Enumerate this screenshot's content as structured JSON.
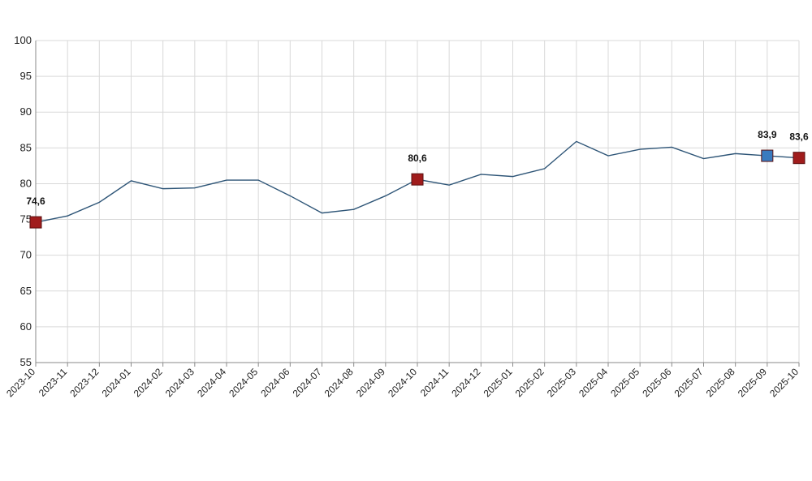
{
  "chart_data": {
    "type": "line",
    "title": "",
    "xlabel": "",
    "ylabel": "",
    "ylim": [
      55,
      100
    ],
    "y_ticks": [
      55,
      60,
      65,
      70,
      75,
      80,
      85,
      90,
      95,
      100
    ],
    "y_tick_labels": [
      "55",
      "60",
      "65",
      "70",
      "75",
      "80",
      "85",
      "90",
      "95",
      "100"
    ],
    "grid": true,
    "legend": "none",
    "categories": [
      "2023-10",
      "2023-11",
      "2023-12",
      "2024-01",
      "2024-02",
      "2024-03",
      "2024-04",
      "2024-05",
      "2024-06",
      "2024-07",
      "2024-08",
      "2024-09",
      "2024-10",
      "2024-11",
      "2024-12",
      "2025-01",
      "2025-02",
      "2025-03",
      "2025-04",
      "2025-05",
      "2025-06",
      "2025-07",
      "2025-08",
      "2025-09",
      "2025-10"
    ],
    "series": [
      {
        "values": [
          74.6,
          75.5,
          77.4,
          80.4,
          79.3,
          79.4,
          80.5,
          80.5,
          78.3,
          75.9,
          76.4,
          78.3,
          80.6,
          79.8,
          81.3,
          81.0,
          82.1,
          85.9,
          83.9,
          84.8,
          85.1,
          83.5,
          84.2,
          83.9,
          83.6
        ],
        "color": "#2e5577"
      }
    ],
    "highlighted_points": [
      {
        "category": "2023-10",
        "value": 74.6,
        "label": "74,6",
        "color": "#a01c1c"
      },
      {
        "category": "2024-10",
        "value": 80.6,
        "label": "80,6",
        "color": "#a01c1c"
      },
      {
        "category": "2025-09",
        "value": 83.9,
        "label": "83,9",
        "color": "#3a7bbf"
      },
      {
        "category": "2025-10",
        "value": 83.6,
        "label": "83,6",
        "color": "#a01c1c"
      }
    ]
  }
}
